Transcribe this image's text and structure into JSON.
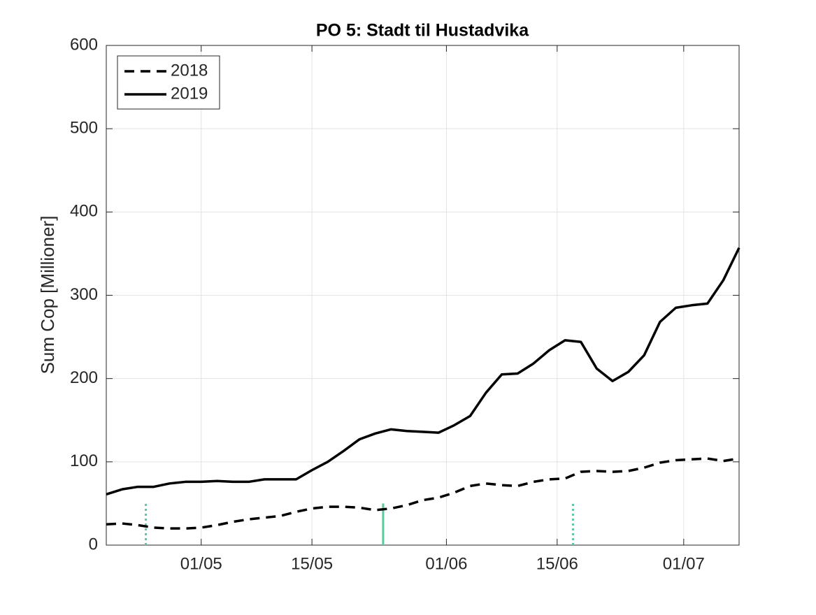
{
  "chart_data": {
    "type": "line",
    "title": "PO 5: Stadt til Hustadvika",
    "y_label": "Sum Cop [Millioner]",
    "x": [
      "19/04",
      "21/04",
      "23/04",
      "25/04",
      "27/04",
      "29/04",
      "01/05",
      "03/05",
      "05/05",
      "07/05",
      "09/05",
      "11/05",
      "13/05",
      "15/05",
      "17/05",
      "19/05",
      "21/05",
      "23/05",
      "25/05",
      "27/05",
      "29/05",
      "31/05",
      "02/06",
      "04/06",
      "06/06",
      "08/06",
      "10/06",
      "12/06",
      "14/06",
      "16/06",
      "18/06",
      "20/06",
      "22/06",
      "24/06",
      "26/06",
      "28/06",
      "30/06",
      "02/07",
      "04/07",
      "06/07",
      "08/07"
    ],
    "series": [
      {
        "name": "2018",
        "color": "#000000",
        "line_style": "dashed",
        "values": [
          25,
          26,
          24,
          21,
          20,
          20,
          21,
          24,
          28,
          31,
          33,
          35,
          40,
          44,
          46,
          46,
          45,
          42,
          44,
          48,
          54,
          57,
          63,
          71,
          74,
          72,
          71,
          76,
          79,
          80,
          88,
          89,
          88,
          89,
          93,
          99,
          102,
          103,
          104,
          101,
          104
        ]
      },
      {
        "name": "2019",
        "color": "#000000",
        "line_style": "solid",
        "values": [
          61,
          67,
          70,
          70,
          74,
          76,
          76,
          77,
          76,
          76,
          79,
          79,
          79,
          90,
          100,
          113,
          127,
          134,
          139,
          137,
          136,
          135,
          144,
          155,
          183,
          205,
          206,
          218,
          234,
          246,
          244,
          212,
          197,
          208,
          228,
          268,
          285,
          288,
          290,
          318,
          357
        ]
      }
    ],
    "markers": [
      {
        "x": "24/04",
        "y": [
          0,
          50
        ],
        "line_style": "dotted"
      },
      {
        "x": "24/05",
        "y": [
          0,
          50
        ],
        "line_style": "solid"
      },
      {
        "x": "17/06",
        "y": [
          0,
          50
        ],
        "line_style": "dotted"
      }
    ],
    "marker_color": "#5ec89c",
    "xlim": [
      "19/04",
      "08/07"
    ],
    "xticks": [
      "01/05",
      "15/05",
      "01/06",
      "15/06",
      "01/07"
    ],
    "ylim": [
      0,
      600
    ],
    "yticks": [
      0,
      100,
      200,
      300,
      400,
      500,
      600
    ],
    "grid": true,
    "legend_position": "upper-left"
  }
}
